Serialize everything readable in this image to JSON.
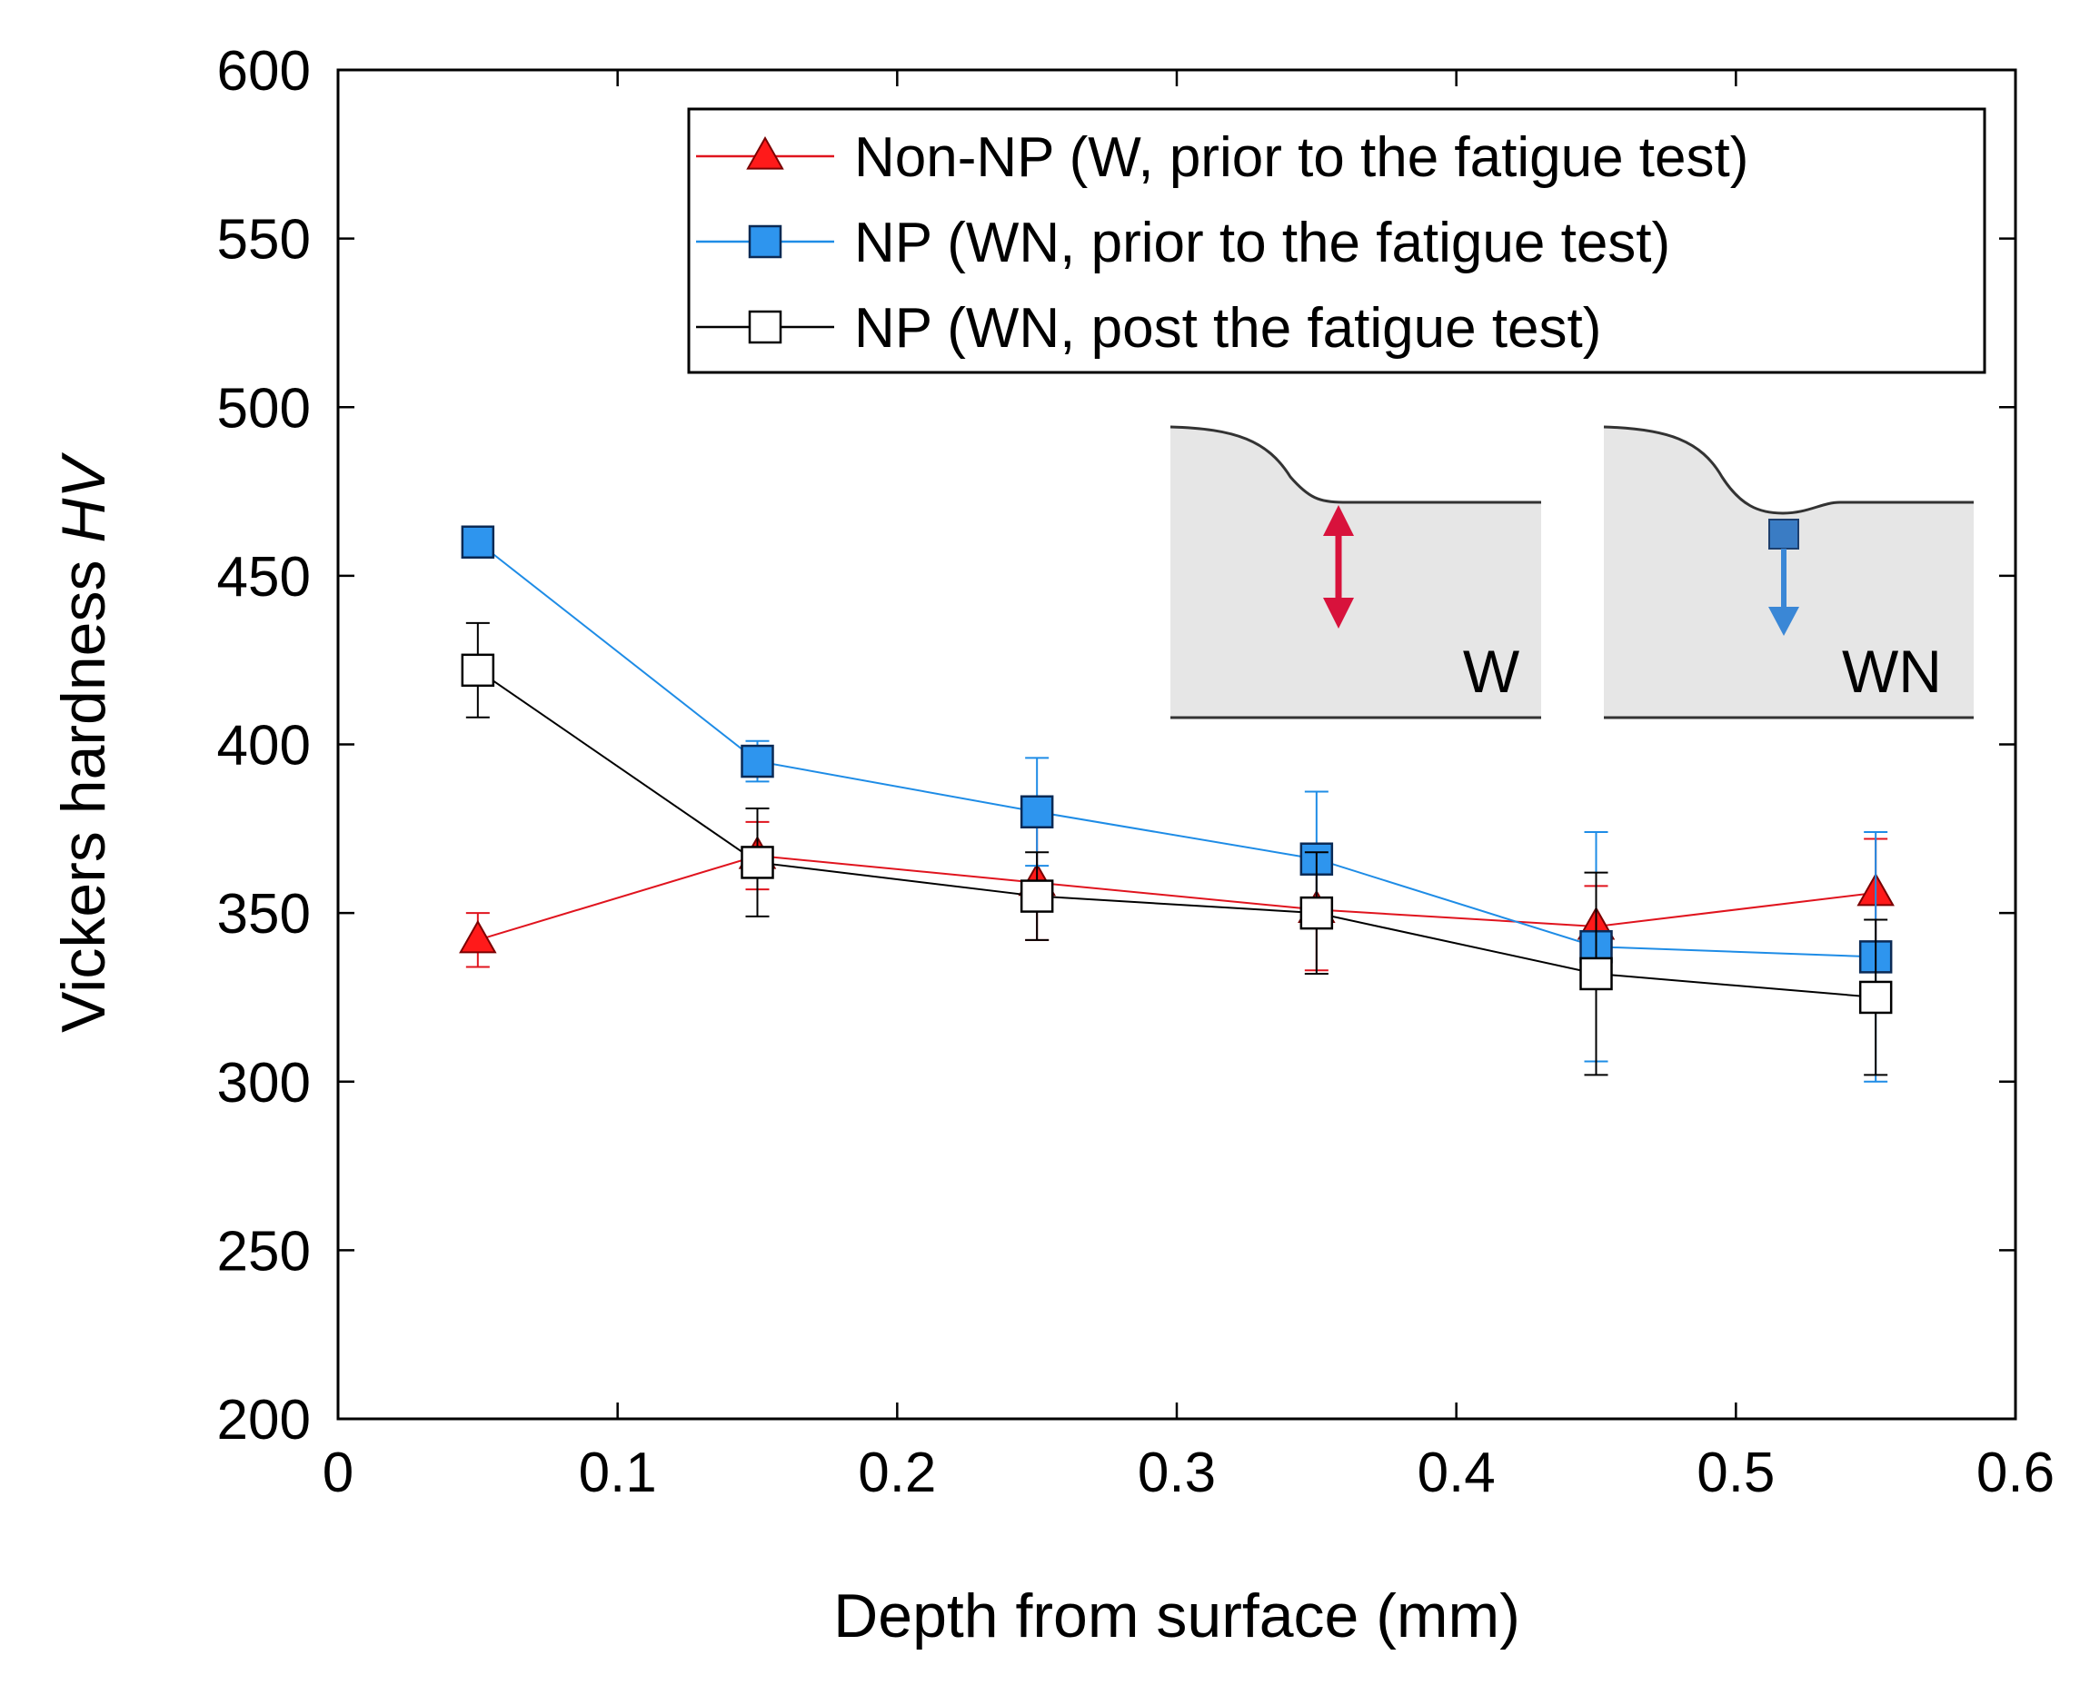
{
  "chart_data": {
    "type": "scatter",
    "xlabel": "Depth from surface (mm)",
    "ylabel": {
      "prefix": "Vickers hardness ",
      "symbol": "HV"
    },
    "xlim": [
      0,
      0.6
    ],
    "ylim": [
      200,
      600
    ],
    "xticks": [
      0,
      0.1,
      0.2,
      0.3,
      0.4,
      0.5,
      0.6
    ],
    "xtick_labels": [
      "0",
      "0.1",
      "0.2",
      "0.3",
      "0.4",
      "0.5",
      "0.6"
    ],
    "yticks": [
      200,
      250,
      300,
      350,
      400,
      450,
      500,
      550,
      600
    ],
    "ytick_labels": [
      "200",
      "250",
      "300",
      "350",
      "400",
      "450",
      "500",
      "550",
      "600"
    ],
    "grid": false,
    "legend_position": "top-right",
    "series": [
      {
        "name": "Non-NP (W, prior to the fatigue test)",
        "marker": "triangle",
        "color": "#e0141e",
        "fill": "#ff1a1a",
        "line": "#e0141e",
        "x": [
          0.05,
          0.15,
          0.25,
          0.35,
          0.45,
          0.55
        ],
        "y": [
          342,
          367,
          359,
          351,
          346,
          356
        ],
        "err": [
          8,
          10,
          17,
          18,
          12,
          16
        ]
      },
      {
        "name": "NP (WN, prior to the fatigue test)",
        "marker": "square",
        "color": "#1e8ce6",
        "fill": "#2e95ee",
        "line": "#1e8ce6",
        "x": [
          0.05,
          0.15,
          0.25,
          0.35,
          0.45,
          0.55
        ],
        "y": [
          460,
          395,
          380,
          366,
          340,
          337
        ],
        "err": [
          0,
          6,
          16,
          20,
          34,
          37
        ]
      },
      {
        "name": "NP (WN, post the fatigue test)",
        "marker": "open-square",
        "color": "#000000",
        "fill": "#ffffff",
        "line": "#000000",
        "x": [
          0.05,
          0.15,
          0.25,
          0.35,
          0.45,
          0.55
        ],
        "y": [
          422,
          365,
          355,
          350,
          332,
          325
        ],
        "err": [
          14,
          16,
          13,
          18,
          30,
          23
        ]
      }
    ],
    "inset": {
      "panels": [
        {
          "label": "W",
          "arrow": "double",
          "arrow_color": "#d8123c"
        },
        {
          "label": "WN",
          "arrow": "down",
          "arrow_color": "#3a87d6",
          "marker_color": "#3a7cc4"
        }
      ]
    }
  }
}
